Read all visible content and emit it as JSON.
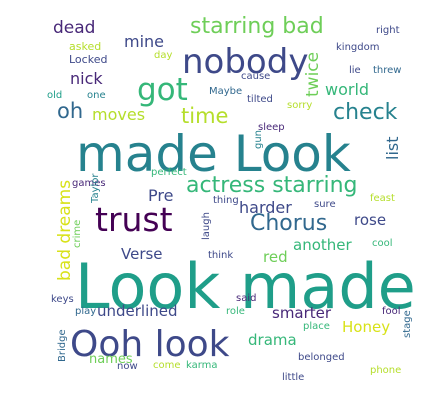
{
  "palette": {
    "background": "#ffffff",
    "dark_purple": "#482878",
    "deep_purple": "#440154",
    "indigo": "#3e4989",
    "blue": "#31688e",
    "steel_blue": "#26828e",
    "teal": "#1f9e89",
    "green": "#35b779",
    "light_green": "#6ece58",
    "lime": "#b5de2b",
    "yellow": "#d8e219"
  },
  "words": [
    {
      "text": "Look made",
      "color": "#1f9e89"
    },
    {
      "text": "made Look",
      "color": "#26828e"
    },
    {
      "text": "Ooh look",
      "color": "#3e4989"
    },
    {
      "text": "nobody",
      "color": "#3e4989"
    },
    {
      "text": "trust",
      "color": "#440154"
    },
    {
      "text": "got",
      "color": "#35b779"
    },
    {
      "text": "actress starring",
      "color": "#35b779"
    },
    {
      "text": "starring bad",
      "color": "#6ece58"
    },
    {
      "text": "Chorus",
      "color": "#31688e"
    },
    {
      "text": "check",
      "color": "#26828e"
    },
    {
      "text": "time",
      "color": "#b5de2b"
    },
    {
      "text": "oh",
      "color": "#31688e"
    },
    {
      "text": "bad dreams",
      "color": "#d8e219"
    },
    {
      "text": "dead",
      "color": "#482878"
    },
    {
      "text": "mine",
      "color": "#3e4989"
    },
    {
      "text": "nick",
      "color": "#482878"
    },
    {
      "text": "moves",
      "color": "#b5de2b"
    },
    {
      "text": "world",
      "color": "#35b779"
    },
    {
      "text": "twice",
      "color": "#6ece58"
    },
    {
      "text": "list",
      "color": "#31688e"
    },
    {
      "text": "harder",
      "color": "#3e4989"
    },
    {
      "text": "Pre",
      "color": "#3e4989"
    },
    {
      "text": "rose",
      "color": "#3e4989"
    },
    {
      "text": "Verse",
      "color": "#3e4989"
    },
    {
      "text": "red",
      "color": "#6ece58"
    },
    {
      "text": "another",
      "color": "#35b779"
    },
    {
      "text": "underlined",
      "color": "#3e4989"
    },
    {
      "text": "smarter",
      "color": "#482878"
    },
    {
      "text": "Honey",
      "color": "#d8e219"
    },
    {
      "text": "drama",
      "color": "#35b779"
    },
    {
      "text": "names",
      "color": "#6ece58"
    },
    {
      "text": "Locked",
      "color": "#3e4989"
    },
    {
      "text": "asked",
      "color": "#b5de2b"
    },
    {
      "text": "day",
      "color": "#b5de2b"
    },
    {
      "text": "kingdom",
      "color": "#3e4989"
    },
    {
      "text": "right",
      "color": "#3e4989"
    },
    {
      "text": "lie",
      "color": "#3e4989"
    },
    {
      "text": "threw",
      "color": "#31688e"
    },
    {
      "text": "cause",
      "color": "#3e4989"
    },
    {
      "text": "Maybe",
      "color": "#31688e"
    },
    {
      "text": "tilted",
      "color": "#3e4989"
    },
    {
      "text": "sorry",
      "color": "#b5de2b"
    },
    {
      "text": "old",
      "color": "#1f9e89"
    },
    {
      "text": "one",
      "color": "#26828e"
    },
    {
      "text": "sleep",
      "color": "#482878"
    },
    {
      "text": "gun",
      "color": "#26828e"
    },
    {
      "text": "perfect",
      "color": "#35b779"
    },
    {
      "text": "games",
      "color": "#482878"
    },
    {
      "text": "Taylor",
      "color": "#26828e"
    },
    {
      "text": "feast",
      "color": "#b5de2b"
    },
    {
      "text": "sure",
      "color": "#3e4989"
    },
    {
      "text": "thing",
      "color": "#3e4989"
    },
    {
      "text": "crime",
      "color": "#6ece58"
    },
    {
      "text": "laugh",
      "color": "#3e4989"
    },
    {
      "text": "think",
      "color": "#3e4989"
    },
    {
      "text": "cool",
      "color": "#35b779"
    },
    {
      "text": "keys",
      "color": "#3e4989"
    },
    {
      "text": "said",
      "color": "#482878"
    },
    {
      "text": "play",
      "color": "#31688e"
    },
    {
      "text": "role",
      "color": "#35b779"
    },
    {
      "text": "fool",
      "color": "#482878"
    },
    {
      "text": "place",
      "color": "#35b779"
    },
    {
      "text": "stage",
      "color": "#31688e"
    },
    {
      "text": "Bridge",
      "color": "#31688e"
    },
    {
      "text": "now",
      "color": "#3e4989"
    },
    {
      "text": "karma",
      "color": "#35b779"
    },
    {
      "text": "come",
      "color": "#b5de2b"
    },
    {
      "text": "belonged",
      "color": "#3e4989"
    },
    {
      "text": "little",
      "color": "#3e4989"
    },
    {
      "text": "phone",
      "color": "#b5de2b"
    }
  ]
}
